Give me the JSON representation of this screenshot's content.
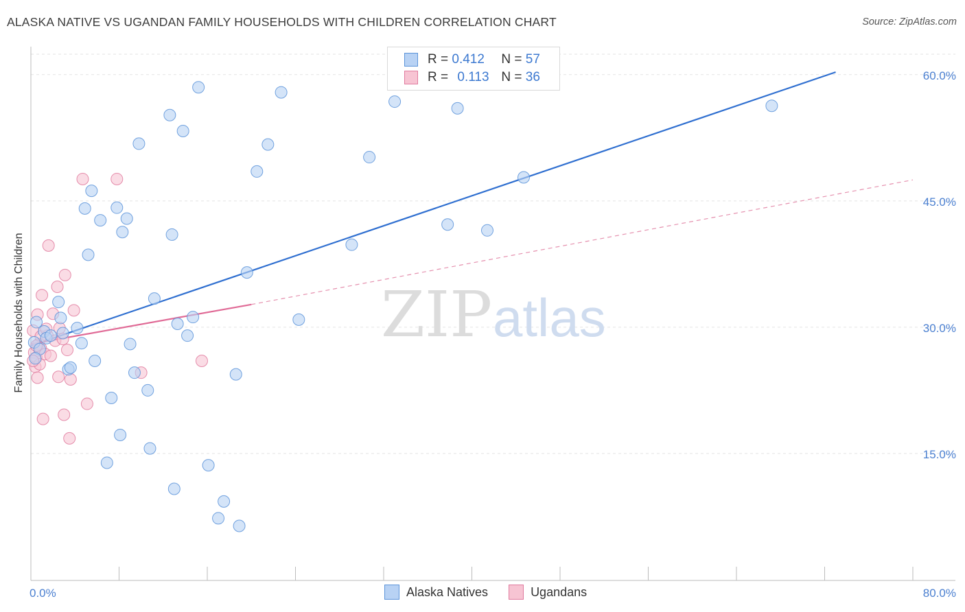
{
  "header": {
    "title": "ALASKA NATIVE VS UGANDAN FAMILY HOUSEHOLDS WITH CHILDREN CORRELATION CHART",
    "source": "Source: ZipAtlas.com"
  },
  "watermark": {
    "zip": "ZIP",
    "atlas": "atlas"
  },
  "legend": {
    "r_label": "R =",
    "n_label": "N =",
    "series": [
      {
        "name": "Alaska Natives",
        "r": "0.412",
        "n": "57",
        "color": "#5b93d9",
        "fill": "#b8d2f4"
      },
      {
        "name": "Ugandans",
        "r": "0.113",
        "n": "36",
        "color": "#e07a9e",
        "fill": "#f7c4d3"
      }
    ]
  },
  "chart_data": {
    "type": "scatter",
    "title": "ALASKA NATIVE VS UGANDAN FAMILY HOUSEHOLDS WITH CHILDREN CORRELATION CHART",
    "xlabel": "",
    "ylabel": "Family Households with Children",
    "xlim": [
      0,
      80
    ],
    "ylim": [
      0,
      63
    ],
    "x_tick_labels": [
      "0.0%",
      "80.0%"
    ],
    "y_ticks": [
      15,
      30,
      45,
      60
    ],
    "y_tick_labels": [
      "15.0%",
      "30.0%",
      "45.0%",
      "60.0%"
    ],
    "grid": true,
    "series": [
      {
        "name": "Alaska Natives",
        "color": "#5b93d9",
        "fill": "#b8d2f4",
        "trend": {
          "x": [
            0,
            73
          ],
          "y": [
            27.8,
            60.3
          ],
          "style": "solid"
        },
        "points": [
          [
            0.5,
            30.6
          ],
          [
            1.2,
            29.5
          ],
          [
            1.4,
            28.7
          ],
          [
            2.5,
            33.0
          ],
          [
            2.7,
            31.1
          ],
          [
            2.9,
            29.3
          ],
          [
            3.4,
            25.0
          ],
          [
            3.6,
            25.2
          ],
          [
            4.2,
            29.9
          ],
          [
            4.6,
            28.1
          ],
          [
            4.9,
            44.1
          ],
          [
            5.2,
            38.6
          ],
          [
            5.5,
            46.2
          ],
          [
            5.8,
            26.0
          ],
          [
            6.3,
            42.7
          ],
          [
            6.9,
            13.9
          ],
          [
            7.3,
            21.6
          ],
          [
            7.8,
            44.2
          ],
          [
            8.1,
            17.2
          ],
          [
            8.3,
            41.3
          ],
          [
            8.7,
            42.9
          ],
          [
            9.0,
            28.0
          ],
          [
            9.4,
            24.6
          ],
          [
            9.8,
            51.8
          ],
          [
            10.6,
            22.5
          ],
          [
            10.8,
            15.6
          ],
          [
            11.2,
            33.4
          ],
          [
            12.6,
            55.2
          ],
          [
            12.8,
            41.0
          ],
          [
            13.0,
            10.8
          ],
          [
            13.3,
            30.4
          ],
          [
            13.8,
            53.3
          ],
          [
            14.2,
            29.0
          ],
          [
            14.7,
            31.2
          ],
          [
            15.2,
            58.5
          ],
          [
            16.1,
            13.6
          ],
          [
            17.0,
            7.3
          ],
          [
            17.5,
            9.3
          ],
          [
            18.6,
            24.4
          ],
          [
            18.9,
            6.4
          ],
          [
            19.6,
            36.5
          ],
          [
            20.5,
            48.5
          ],
          [
            21.5,
            51.7
          ],
          [
            22.7,
            57.9
          ],
          [
            24.3,
            30.9
          ],
          [
            29.1,
            39.8
          ],
          [
            30.7,
            50.2
          ],
          [
            33.0,
            56.8
          ],
          [
            37.8,
            42.2
          ],
          [
            38.7,
            56.0
          ],
          [
            41.4,
            41.5
          ],
          [
            44.7,
            47.8
          ],
          [
            67.2,
            56.3
          ],
          [
            0.3,
            28.2
          ],
          [
            0.8,
            27.4
          ],
          [
            1.8,
            29.0
          ],
          [
            0.4,
            26.3
          ]
        ]
      },
      {
        "name": "Ugandans",
        "color": "#e07a9e",
        "fill": "#f7c4d3",
        "trend": {
          "x": [
            0,
            20
          ],
          "y": [
            28.0,
            32.7
          ],
          "style": "solid",
          "ext_x": [
            20,
            80
          ],
          "ext_y": [
            32.7,
            47.5
          ]
        },
        "points": [
          [
            0.2,
            29.6
          ],
          [
            0.3,
            27.0
          ],
          [
            0.4,
            25.3
          ],
          [
            0.5,
            26.4
          ],
          [
            0.6,
            31.5
          ],
          [
            0.6,
            24.0
          ],
          [
            0.7,
            28.0
          ],
          [
            0.8,
            25.6
          ],
          [
            0.9,
            27.5
          ],
          [
            1.0,
            33.8
          ],
          [
            1.1,
            19.1
          ],
          [
            1.3,
            26.8
          ],
          [
            1.5,
            29.0
          ],
          [
            1.6,
            39.7
          ],
          [
            1.8,
            26.6
          ],
          [
            2.0,
            31.6
          ],
          [
            2.2,
            28.4
          ],
          [
            2.4,
            34.8
          ],
          [
            2.5,
            24.1
          ],
          [
            2.6,
            29.9
          ],
          [
            3.0,
            19.6
          ],
          [
            3.1,
            36.2
          ],
          [
            3.3,
            27.3
          ],
          [
            3.5,
            16.8
          ],
          [
            3.6,
            23.8
          ],
          [
            3.9,
            32.0
          ],
          [
            4.7,
            47.6
          ],
          [
            5.1,
            20.9
          ],
          [
            7.8,
            47.6
          ],
          [
            10.0,
            24.6
          ],
          [
            15.5,
            26.0
          ],
          [
            0.2,
            26.0
          ],
          [
            0.9,
            28.9
          ],
          [
            1.4,
            29.8
          ],
          [
            0.5,
            27.8
          ],
          [
            2.9,
            28.6
          ]
        ]
      }
    ]
  }
}
